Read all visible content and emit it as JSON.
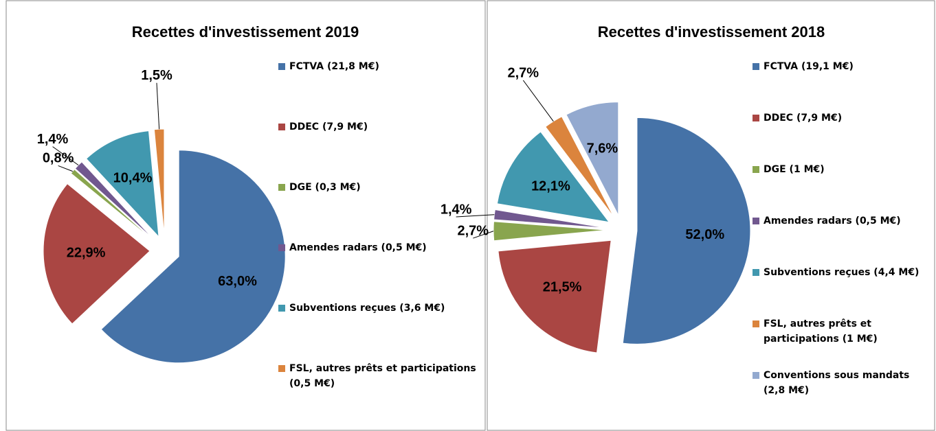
{
  "chart_data": [
    {
      "type": "pie",
      "title": "Recettes d'investissement 2019",
      "categories": [
        "FCTVA (21,8 M€)",
        "DDEC (7,9 M€)",
        "DGE (0,3 M€)",
        "Amendes radars (0,5 M€)",
        "Subventions reçues (3,6 M€)",
        "FSL, autres prêts et participations (0,5 M€)"
      ],
      "values": [
        63.0,
        22.9,
        0.8,
        1.4,
        10.4,
        1.5
      ],
      "value_labels": [
        "63,0%",
        "22,9%",
        "0,8%",
        "1,4%",
        "10,4%",
        "1,5%"
      ],
      "colors": [
        "#4572a7",
        "#aa4643",
        "#89a54e",
        "#71588f",
        "#4198af",
        "#db843d"
      ],
      "legend": "right"
    },
    {
      "type": "pie",
      "title": "Recettes d'investissement 2018",
      "categories": [
        "FCTVA (19,1 M€)",
        "DDEC (7,9 M€)",
        "DGE (1 M€)",
        "Amendes radars (0,5 M€)",
        "Subventions reçues (4,4 M€)",
        "FSL, autres prêts et participations (1 M€)",
        "Conventions sous mandats (2,8 M€)"
      ],
      "values": [
        52.0,
        21.5,
        2.7,
        1.4,
        12.1,
        2.7,
        7.6
      ],
      "value_labels": [
        "52,0%",
        "21,5%",
        "2,7%",
        "1,4%",
        "12,1%",
        "2,7%",
        "7,6%"
      ],
      "colors": [
        "#4572a7",
        "#aa4643",
        "#89a54e",
        "#71588f",
        "#4198af",
        "#db843d",
        "#93a9cf"
      ],
      "legend": "right"
    }
  ]
}
